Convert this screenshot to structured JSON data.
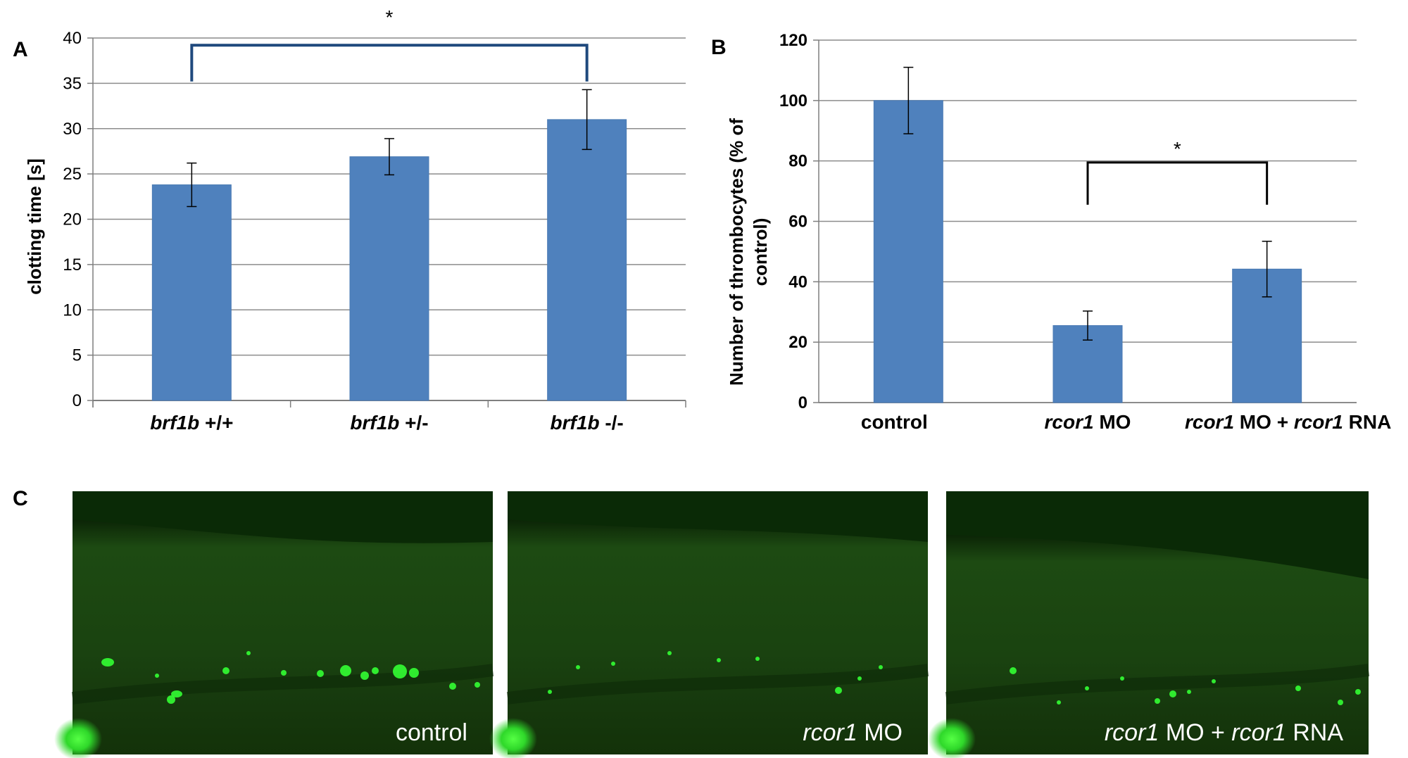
{
  "figure": {
    "panel_labels": {
      "a": "A",
      "b": "B",
      "c": "C"
    }
  },
  "chart_data": [
    {
      "panel": "A",
      "type": "bar",
      "categories": [
        {
          "italic": "brf1b",
          "rest": " +/+"
        },
        {
          "italic": "brf1b",
          "rest": "  +/-"
        },
        {
          "italic": "brf1b",
          "rest": " -/-"
        }
      ],
      "values": [
        23.8,
        26.9,
        31.0
      ],
      "errors": [
        2.4,
        2.0,
        3.3
      ],
      "ylabel": "clotting time [s]",
      "ylim": [
        0,
        40
      ],
      "yticks": [
        0,
        5,
        10,
        15,
        20,
        25,
        30,
        35,
        40
      ],
      "grid": true,
      "bar_color": "#4f81bd",
      "bracket_color": "#1f497d",
      "significance": [
        {
          "from": 0,
          "to": 2,
          "y": 39.2,
          "drop": 35.2,
          "label": "*"
        }
      ]
    },
    {
      "panel": "B",
      "type": "bar",
      "categories": [
        {
          "parts": [
            {
              "text": "control",
              "italic": false
            }
          ]
        },
        {
          "parts": [
            {
              "text": "rcor1",
              "italic": true
            },
            {
              "text": " MO",
              "italic": false
            }
          ]
        },
        {
          "parts": [
            {
              "text": "rcor1",
              "italic": true
            },
            {
              "text": " MO + ",
              "italic": false
            },
            {
              "text": "rcor1",
              "italic": true
            },
            {
              "text": " RNA",
              "italic": false
            }
          ]
        }
      ],
      "values": [
        100,
        25.5,
        44.2
      ],
      "errors": [
        11,
        4.8,
        9.2
      ],
      "ylabel_lines": [
        "Number of thrombocytes (% of",
        "control)"
      ],
      "ylim": [
        0,
        120
      ],
      "yticks": [
        0,
        20,
        40,
        60,
        80,
        100,
        120
      ],
      "grid": true,
      "bar_color": "#4f81bd",
      "bracket_color": "#000000",
      "significance": [
        {
          "from": 1,
          "to": 2,
          "y": 79.5,
          "drop": 65.5,
          "label": "*"
        }
      ]
    }
  ],
  "micrographs": [
    {
      "label_parts": [
        {
          "text": "control",
          "italic": false
        }
      ]
    },
    {
      "label_parts": [
        {
          "text": "rcor1",
          "italic": true
        },
        {
          "text": " MO",
          "italic": false
        }
      ]
    },
    {
      "label_parts": [
        {
          "text": "rcor1",
          "italic": true
        },
        {
          "text": " MO + ",
          "italic": false
        },
        {
          "text": "rcor1",
          "italic": true
        },
        {
          "text": " RNA",
          "italic": false
        }
      ]
    }
  ],
  "colors": {
    "fluorescence_bg": "#0a2a06",
    "fluorescence_dot": "#33ff33"
  }
}
